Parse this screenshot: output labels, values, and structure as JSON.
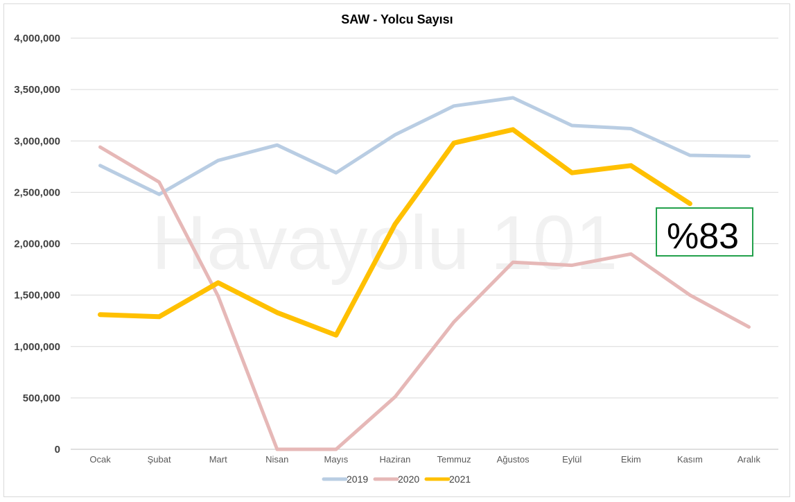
{
  "chart_data": {
    "type": "line",
    "title": "SAW - Yolcu Sayısı",
    "categories": [
      "Ocak",
      "Şubat",
      "Mart",
      "Nisan",
      "Mayıs",
      "Haziran",
      "Temmuz",
      "Ağustos",
      "Eylül",
      "Ekim",
      "Kasım",
      "Aralık"
    ],
    "y_ticks": [
      "0",
      "500,000",
      "1,000,000",
      "1,500,000",
      "2,000,000",
      "2,500,000",
      "3,000,000",
      "3,500,000",
      "4,000,000"
    ],
    "ylim": [
      0,
      4000000
    ],
    "grid": true,
    "legend_position": "bottom",
    "series": [
      {
        "name": "2019",
        "color": "#b9cde3",
        "values": [
          2760000,
          2480000,
          2810000,
          2960000,
          2690000,
          3060000,
          3340000,
          3420000,
          3150000,
          3120000,
          2860000,
          2850000
        ]
      },
      {
        "name": "2020",
        "color": "#e6b8b7",
        "values": [
          2940000,
          2600000,
          1490000,
          0,
          0,
          510000,
          1240000,
          1820000,
          1790000,
          1900000,
          1500000,
          1190000
        ]
      },
      {
        "name": "2021",
        "color": "#ffc000",
        "values": [
          1310000,
          1290000,
          1620000,
          1330000,
          1110000,
          2190000,
          2980000,
          3110000,
          2690000,
          2760000,
          2390000,
          null
        ]
      }
    ],
    "annotations": {
      "watermark": "Havayolu 101",
      "badge": {
        "text": "%83",
        "border_color": "#22a04b"
      }
    }
  }
}
